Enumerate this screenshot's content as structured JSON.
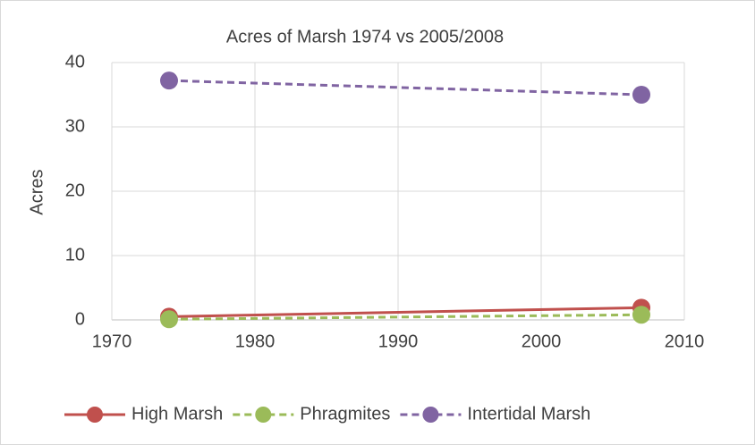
{
  "chart_data": {
    "type": "line",
    "title": "Acres of Marsh 1974 vs 2005/2008",
    "y_label": "Acres",
    "xlim": [
      1970,
      2010
    ],
    "xticks": [
      1970,
      1980,
      1990,
      2000,
      2010
    ],
    "ylim": [
      0,
      40
    ],
    "yticks": [
      0,
      10,
      20,
      30,
      40
    ],
    "grid": true,
    "legend": "bottom",
    "series": [
      {
        "name": "High Marsh",
        "color": "#c0504d",
        "dashed": false,
        "x": [
          1974,
          2007
        ],
        "values": [
          0.5,
          1.9
        ]
      },
      {
        "name": "Phragmites",
        "color": "#9bbb59",
        "dashed": true,
        "x": [
          1974,
          2007
        ],
        "values": [
          0.1,
          0.8
        ]
      },
      {
        "name": "Intertidal Marsh",
        "color": "#8064a2",
        "dashed": true,
        "x": [
          1974,
          2007
        ],
        "values": [
          37.2,
          35
        ]
      }
    ]
  }
}
